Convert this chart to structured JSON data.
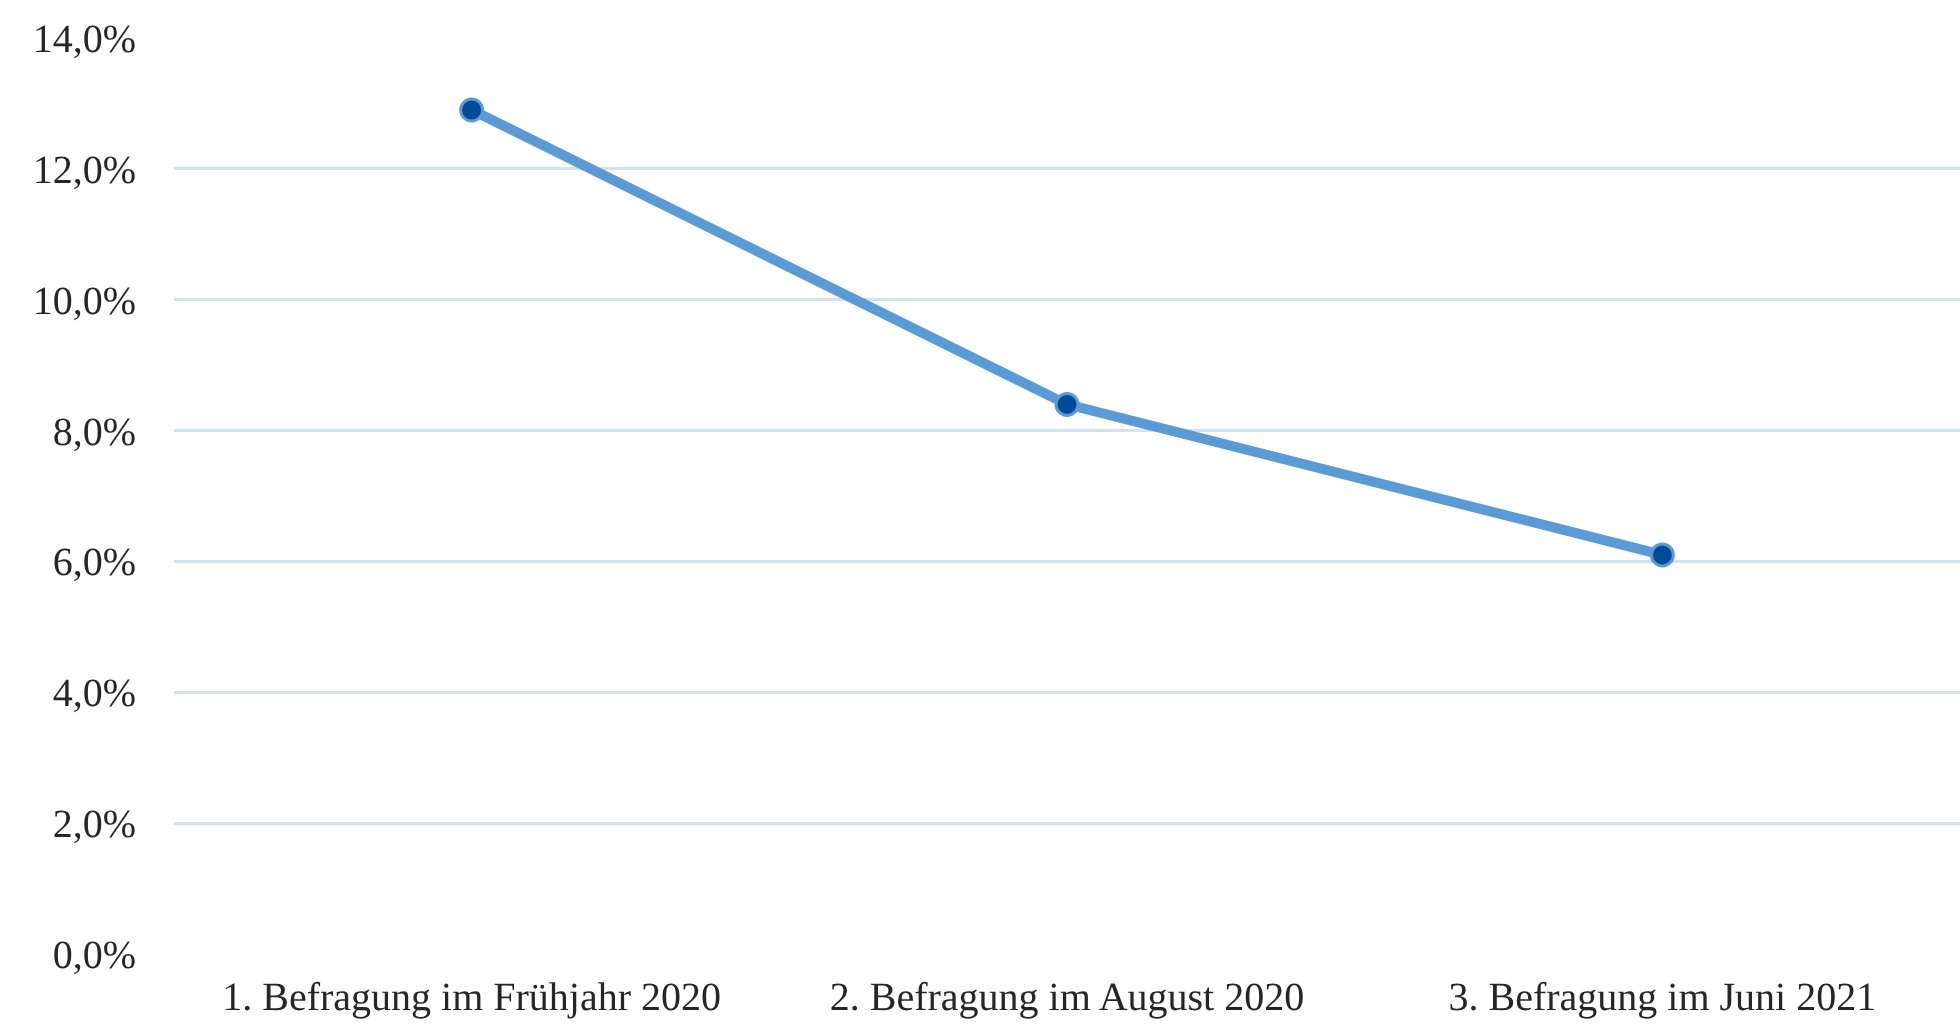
{
  "chart_data": {
    "type": "line",
    "categories": [
      "1. Befragung im Frühjahr 2020",
      "2. Befragung im August 2020",
      "3. Befragung im Juni 2021"
    ],
    "series": [
      {
        "color": "#5b9bd5",
        "colors": [
          "#004a99",
          "#004a99",
          "#004a99"
        ],
        "values": [
          12.9,
          8.4,
          6.1
        ]
      }
    ],
    "ylim": [
      0,
      14
    ],
    "yticks": [
      {
        "value": 0,
        "label": "0,0%"
      },
      {
        "value": 2,
        "label": "2,0%"
      },
      {
        "value": 4,
        "label": "4,0%"
      },
      {
        "value": 6,
        "label": "6,0%"
      },
      {
        "value": 8,
        "label": "8,0%"
      },
      {
        "value": 10,
        "label": "10,0%"
      },
      {
        "value": 12,
        "label": "12,0%"
      },
      {
        "value": 14,
        "label": "14,0%"
      }
    ],
    "grid": "y",
    "marker": "circle",
    "line_style": "solid"
  }
}
